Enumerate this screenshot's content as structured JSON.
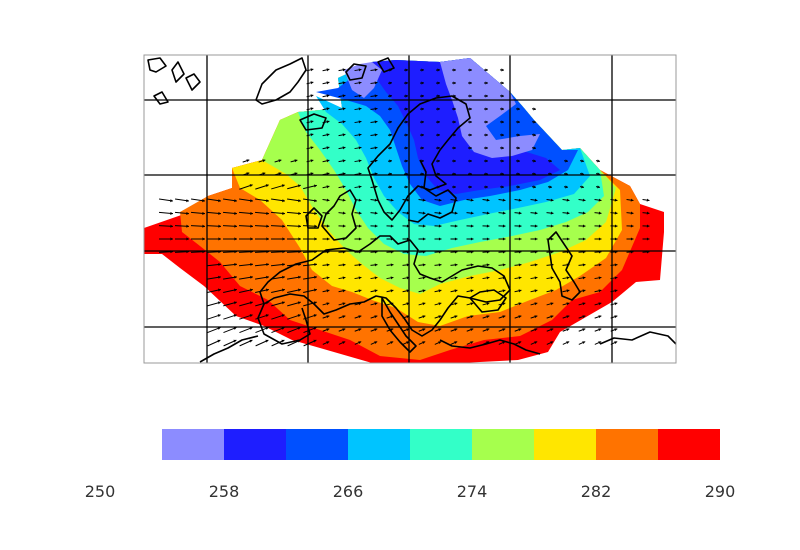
{
  "chart_data": {
    "type": "heatmap",
    "title": "",
    "xlabel": "",
    "ylabel": "",
    "colorbar": {
      "ticks": [
        250,
        258,
        266,
        274,
        282,
        290
      ],
      "tick_labels": [
        "250",
        "258",
        "266",
        "274",
        "282",
        "290"
      ],
      "bins": [
        {
          "min": 254,
          "max": 258,
          "color": "#8c8cff"
        },
        {
          "min": 258,
          "max": 262,
          "color": "#1e1eff"
        },
        {
          "min": 262,
          "max": 266,
          "color": "#0050ff"
        },
        {
          "min": 266,
          "max": 270,
          "color": "#00c4ff"
        },
        {
          "min": 270,
          "max": 274,
          "color": "#33ffc8"
        },
        {
          "min": 274,
          "max": 278,
          "color": "#a6ff4d"
        },
        {
          "min": 278,
          "max": 282,
          "color": "#ffe600"
        },
        {
          "min": 282,
          "max": 286,
          "color": "#ff7300"
        },
        {
          "min": 286,
          "max": 290,
          "color": "#ff0000"
        }
      ]
    },
    "grid": true,
    "vectors": "wind arrows overlaid",
    "coastlines": true
  }
}
